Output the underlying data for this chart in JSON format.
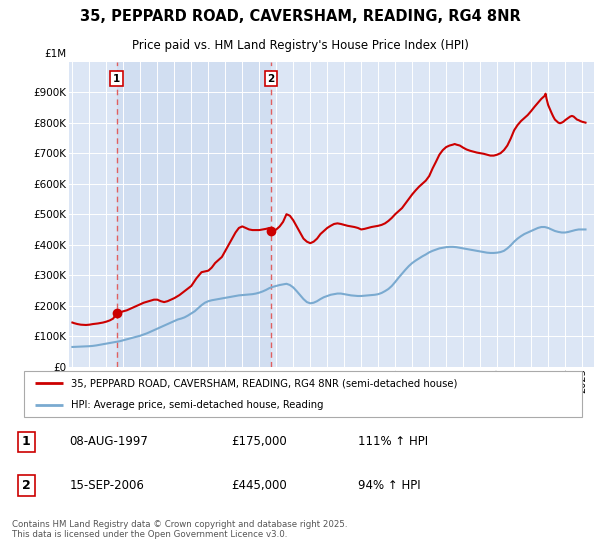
{
  "title": "35, PEPPARD ROAD, CAVERSHAM, READING, RG4 8NR",
  "subtitle": "Price paid vs. HM Land Registry's House Price Index (HPI)",
  "legend_line1": "35, PEPPARD ROAD, CAVERSHAM, READING, RG4 8NR (semi-detached house)",
  "legend_line2": "HPI: Average price, semi-detached house, Reading",
  "transaction1_date": "08-AUG-1997",
  "transaction1_price": "£175,000",
  "transaction1_hpi": "111% ↑ HPI",
  "transaction2_date": "15-SEP-2006",
  "transaction2_price": "£445,000",
  "transaction2_hpi": "94% ↑ HPI",
  "footnote": "Contains HM Land Registry data © Crown copyright and database right 2025.\nThis data is licensed under the Open Government Licence v3.0.",
  "price_line_color": "#cc0000",
  "hpi_line_color": "#7aaad0",
  "vline_color": "#e06060",
  "background_color": "#dce6f5",
  "plot_bg_color": "#dce6f5",
  "ylim": [
    0,
    1000000
  ],
  "yticks": [
    0,
    100000,
    200000,
    300000,
    400000,
    500000,
    600000,
    700000,
    800000,
    900000
  ],
  "ytick_labels": [
    "£0",
    "£100K",
    "£200K",
    "£300K",
    "£400K",
    "£500K",
    "£600K",
    "£700K",
    "£800K",
    "£900K"
  ],
  "ytop_label": "£1M",
  "xlim_start": 1994.8,
  "xlim_end": 2025.7,
  "transaction1_x": 1997.6,
  "transaction2_x": 2006.7,
  "price_data": [
    [
      1995.0,
      145000
    ],
    [
      1995.1,
      143000
    ],
    [
      1995.3,
      140000
    ],
    [
      1995.5,
      138000
    ],
    [
      1995.8,
      137000
    ],
    [
      1996.0,
      138000
    ],
    [
      1996.2,
      140000
    ],
    [
      1996.5,
      142000
    ],
    [
      1996.8,
      145000
    ],
    [
      1997.0,
      148000
    ],
    [
      1997.2,
      152000
    ],
    [
      1997.4,
      158000
    ],
    [
      1997.6,
      175000
    ],
    [
      1997.7,
      178000
    ],
    [
      1997.9,
      180000
    ],
    [
      1998.0,
      182000
    ],
    [
      1998.2,
      185000
    ],
    [
      1998.4,
      190000
    ],
    [
      1998.6,
      195000
    ],
    [
      1998.8,
      200000
    ],
    [
      1999.0,
      205000
    ],
    [
      1999.2,
      210000
    ],
    [
      1999.5,
      215000
    ],
    [
      1999.8,
      220000
    ],
    [
      2000.0,
      220000
    ],
    [
      2000.2,
      215000
    ],
    [
      2000.4,
      212000
    ],
    [
      2000.6,
      215000
    ],
    [
      2000.8,
      220000
    ],
    [
      2001.0,
      225000
    ],
    [
      2001.3,
      235000
    ],
    [
      2001.6,
      248000
    ],
    [
      2002.0,
      265000
    ],
    [
      2002.3,
      290000
    ],
    [
      2002.6,
      310000
    ],
    [
      2003.0,
      315000
    ],
    [
      2003.2,
      325000
    ],
    [
      2003.4,
      340000
    ],
    [
      2003.6,
      350000
    ],
    [
      2003.8,
      360000
    ],
    [
      2004.0,
      380000
    ],
    [
      2004.2,
      400000
    ],
    [
      2004.4,
      420000
    ],
    [
      2004.6,
      440000
    ],
    [
      2004.8,
      455000
    ],
    [
      2005.0,
      460000
    ],
    [
      2005.2,
      455000
    ],
    [
      2005.4,
      450000
    ],
    [
      2005.6,
      448000
    ],
    [
      2005.8,
      448000
    ],
    [
      2006.0,
      448000
    ],
    [
      2006.2,
      450000
    ],
    [
      2006.4,
      452000
    ],
    [
      2006.6,
      455000
    ],
    [
      2006.7,
      445000
    ],
    [
      2006.8,
      445000
    ],
    [
      2007.0,
      450000
    ],
    [
      2007.2,
      460000
    ],
    [
      2007.4,
      475000
    ],
    [
      2007.6,
      500000
    ],
    [
      2007.8,
      495000
    ],
    [
      2008.0,
      480000
    ],
    [
      2008.2,
      460000
    ],
    [
      2008.4,
      440000
    ],
    [
      2008.6,
      420000
    ],
    [
      2008.8,
      410000
    ],
    [
      2009.0,
      405000
    ],
    [
      2009.2,
      410000
    ],
    [
      2009.4,
      420000
    ],
    [
      2009.6,
      435000
    ],
    [
      2009.8,
      445000
    ],
    [
      2010.0,
      455000
    ],
    [
      2010.2,
      462000
    ],
    [
      2010.4,
      468000
    ],
    [
      2010.6,
      470000
    ],
    [
      2010.8,
      468000
    ],
    [
      2011.0,
      465000
    ],
    [
      2011.2,
      462000
    ],
    [
      2011.4,
      460000
    ],
    [
      2011.6,
      458000
    ],
    [
      2011.8,
      455000
    ],
    [
      2012.0,
      450000
    ],
    [
      2012.2,
      452000
    ],
    [
      2012.4,
      455000
    ],
    [
      2012.6,
      458000
    ],
    [
      2012.8,
      460000
    ],
    [
      2013.0,
      462000
    ],
    [
      2013.2,
      465000
    ],
    [
      2013.4,
      470000
    ],
    [
      2013.6,
      478000
    ],
    [
      2013.8,
      488000
    ],
    [
      2014.0,
      500000
    ],
    [
      2014.2,
      510000
    ],
    [
      2014.4,
      520000
    ],
    [
      2014.6,
      535000
    ],
    [
      2014.8,
      550000
    ],
    [
      2015.0,
      565000
    ],
    [
      2015.2,
      578000
    ],
    [
      2015.4,
      590000
    ],
    [
      2015.6,
      600000
    ],
    [
      2015.8,
      610000
    ],
    [
      2016.0,
      625000
    ],
    [
      2016.2,
      650000
    ],
    [
      2016.4,
      672000
    ],
    [
      2016.6,
      695000
    ],
    [
      2016.8,
      710000
    ],
    [
      2017.0,
      720000
    ],
    [
      2017.2,
      725000
    ],
    [
      2017.4,
      728000
    ],
    [
      2017.5,
      730000
    ],
    [
      2017.6,
      728000
    ],
    [
      2017.8,
      725000
    ],
    [
      2018.0,
      718000
    ],
    [
      2018.2,
      712000
    ],
    [
      2018.4,
      708000
    ],
    [
      2018.6,
      705000
    ],
    [
      2018.8,
      702000
    ],
    [
      2019.0,
      700000
    ],
    [
      2019.2,
      698000
    ],
    [
      2019.4,
      695000
    ],
    [
      2019.6,
      692000
    ],
    [
      2019.8,
      692000
    ],
    [
      2020.0,
      695000
    ],
    [
      2020.2,
      700000
    ],
    [
      2020.4,
      710000
    ],
    [
      2020.6,
      725000
    ],
    [
      2020.8,
      748000
    ],
    [
      2021.0,
      775000
    ],
    [
      2021.2,
      792000
    ],
    [
      2021.4,
      805000
    ],
    [
      2021.6,
      815000
    ],
    [
      2021.8,
      825000
    ],
    [
      2022.0,
      838000
    ],
    [
      2022.2,
      852000
    ],
    [
      2022.4,
      865000
    ],
    [
      2022.6,
      878000
    ],
    [
      2022.8,
      888000
    ],
    [
      2022.85,
      895000
    ],
    [
      2022.9,
      880000
    ],
    [
      2023.0,
      858000
    ],
    [
      2023.1,
      845000
    ],
    [
      2023.2,
      832000
    ],
    [
      2023.3,
      820000
    ],
    [
      2023.4,
      810000
    ],
    [
      2023.5,
      805000
    ],
    [
      2023.6,
      800000
    ],
    [
      2023.7,
      798000
    ],
    [
      2023.8,
      800000
    ],
    [
      2023.9,
      803000
    ],
    [
      2024.0,
      808000
    ],
    [
      2024.1,
      812000
    ],
    [
      2024.2,
      816000
    ],
    [
      2024.3,
      820000
    ],
    [
      2024.4,
      822000
    ],
    [
      2024.5,
      820000
    ],
    [
      2024.6,
      815000
    ],
    [
      2024.7,
      810000
    ],
    [
      2024.8,
      808000
    ],
    [
      2024.9,
      805000
    ],
    [
      2025.0,
      803000
    ],
    [
      2025.2,
      800000
    ]
  ],
  "hpi_data": [
    [
      1995.0,
      65000
    ],
    [
      1995.2,
      65500
    ],
    [
      1995.4,
      66000
    ],
    [
      1995.6,
      66500
    ],
    [
      1995.8,
      67000
    ],
    [
      1996.0,
      67500
    ],
    [
      1996.2,
      68500
    ],
    [
      1996.4,
      70000
    ],
    [
      1996.6,
      72000
    ],
    [
      1996.8,
      74000
    ],
    [
      1997.0,
      76000
    ],
    [
      1997.2,
      78000
    ],
    [
      1997.4,
      80000
    ],
    [
      1997.6,
      82000
    ],
    [
      1997.8,
      84000
    ],
    [
      1998.0,
      87000
    ],
    [
      1998.2,
      90000
    ],
    [
      1998.4,
      93000
    ],
    [
      1998.6,
      96000
    ],
    [
      1998.8,
      99000
    ],
    [
      1999.0,
      102000
    ],
    [
      1999.2,
      106000
    ],
    [
      1999.4,
      110000
    ],
    [
      1999.6,
      115000
    ],
    [
      1999.8,
      120000
    ],
    [
      2000.0,
      125000
    ],
    [
      2000.2,
      130000
    ],
    [
      2000.4,
      135000
    ],
    [
      2000.6,
      140000
    ],
    [
      2000.8,
      145000
    ],
    [
      2001.0,
      150000
    ],
    [
      2001.2,
      155000
    ],
    [
      2001.4,
      158000
    ],
    [
      2001.6,
      162000
    ],
    [
      2001.8,
      168000
    ],
    [
      2002.0,
      175000
    ],
    [
      2002.2,
      182000
    ],
    [
      2002.4,
      192000
    ],
    [
      2002.6,
      202000
    ],
    [
      2002.8,
      210000
    ],
    [
      2003.0,
      215000
    ],
    [
      2003.2,
      218000
    ],
    [
      2003.4,
      220000
    ],
    [
      2003.6,
      222000
    ],
    [
      2003.8,
      224000
    ],
    [
      2004.0,
      226000
    ],
    [
      2004.2,
      228000
    ],
    [
      2004.4,
      230000
    ],
    [
      2004.6,
      232000
    ],
    [
      2004.8,
      234000
    ],
    [
      2005.0,
      235000
    ],
    [
      2005.2,
      236000
    ],
    [
      2005.4,
      237000
    ],
    [
      2005.6,
      238000
    ],
    [
      2005.8,
      240000
    ],
    [
      2006.0,
      243000
    ],
    [
      2006.2,
      247000
    ],
    [
      2006.4,
      252000
    ],
    [
      2006.6,
      258000
    ],
    [
      2006.8,
      262000
    ],
    [
      2007.0,
      265000
    ],
    [
      2007.2,
      268000
    ],
    [
      2007.4,
      270000
    ],
    [
      2007.6,
      272000
    ],
    [
      2007.8,
      268000
    ],
    [
      2008.0,
      260000
    ],
    [
      2008.2,
      248000
    ],
    [
      2008.4,
      235000
    ],
    [
      2008.6,
      222000
    ],
    [
      2008.8,
      212000
    ],
    [
      2009.0,
      208000
    ],
    [
      2009.2,
      210000
    ],
    [
      2009.4,
      215000
    ],
    [
      2009.6,
      222000
    ],
    [
      2009.8,
      228000
    ],
    [
      2010.0,
      232000
    ],
    [
      2010.2,
      236000
    ],
    [
      2010.4,
      238000
    ],
    [
      2010.6,
      240000
    ],
    [
      2010.8,
      240000
    ],
    [
      2011.0,
      238000
    ],
    [
      2011.2,
      236000
    ],
    [
      2011.4,
      234000
    ],
    [
      2011.6,
      233000
    ],
    [
      2011.8,
      232000
    ],
    [
      2012.0,
      232000
    ],
    [
      2012.2,
      233000
    ],
    [
      2012.4,
      234000
    ],
    [
      2012.6,
      235000
    ],
    [
      2012.8,
      236000
    ],
    [
      2013.0,
      238000
    ],
    [
      2013.2,
      242000
    ],
    [
      2013.4,
      248000
    ],
    [
      2013.6,
      255000
    ],
    [
      2013.8,
      265000
    ],
    [
      2014.0,
      278000
    ],
    [
      2014.2,
      292000
    ],
    [
      2014.4,
      305000
    ],
    [
      2014.6,
      318000
    ],
    [
      2014.8,
      330000
    ],
    [
      2015.0,
      340000
    ],
    [
      2015.2,
      348000
    ],
    [
      2015.4,
      355000
    ],
    [
      2015.6,
      362000
    ],
    [
      2015.8,
      368000
    ],
    [
      2016.0,
      375000
    ],
    [
      2016.2,
      380000
    ],
    [
      2016.4,
      384000
    ],
    [
      2016.6,
      388000
    ],
    [
      2016.8,
      390000
    ],
    [
      2017.0,
      392000
    ],
    [
      2017.2,
      393000
    ],
    [
      2017.4,
      393000
    ],
    [
      2017.6,
      392000
    ],
    [
      2017.8,
      390000
    ],
    [
      2018.0,
      388000
    ],
    [
      2018.2,
      386000
    ],
    [
      2018.4,
      384000
    ],
    [
      2018.6,
      382000
    ],
    [
      2018.8,
      380000
    ],
    [
      2019.0,
      378000
    ],
    [
      2019.2,
      376000
    ],
    [
      2019.4,
      374000
    ],
    [
      2019.6,
      373000
    ],
    [
      2019.8,
      373000
    ],
    [
      2020.0,
      374000
    ],
    [
      2020.2,
      376000
    ],
    [
      2020.4,
      380000
    ],
    [
      2020.6,
      388000
    ],
    [
      2020.8,
      398000
    ],
    [
      2021.0,
      410000
    ],
    [
      2021.2,
      420000
    ],
    [
      2021.4,
      428000
    ],
    [
      2021.6,
      435000
    ],
    [
      2021.8,
      440000
    ],
    [
      2022.0,
      445000
    ],
    [
      2022.2,
      450000
    ],
    [
      2022.4,
      455000
    ],
    [
      2022.6,
      458000
    ],
    [
      2022.8,
      458000
    ],
    [
      2023.0,
      455000
    ],
    [
      2023.2,
      450000
    ],
    [
      2023.4,
      445000
    ],
    [
      2023.6,
      442000
    ],
    [
      2023.8,
      440000
    ],
    [
      2024.0,
      440000
    ],
    [
      2024.2,
      442000
    ],
    [
      2024.4,
      445000
    ],
    [
      2024.6,
      448000
    ],
    [
      2024.8,
      450000
    ],
    [
      2025.0,
      450000
    ],
    [
      2025.2,
      450000
    ]
  ]
}
